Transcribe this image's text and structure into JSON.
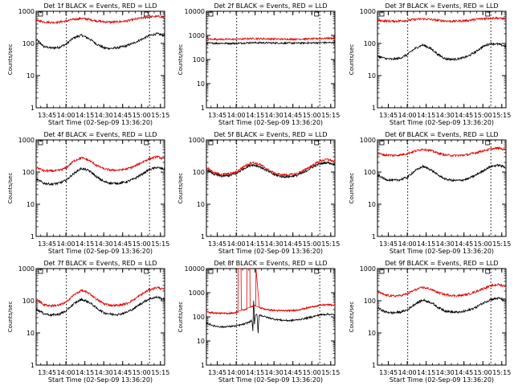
{
  "chart_data": [
    {
      "type": "line",
      "title": "Det 1f BLACK = Events, RED = LLD",
      "xlabel": "Start Time (02-Sep-09 13:36:20)",
      "ylabel": "Counts/sec",
      "xticks": [
        "13:45",
        "14:00",
        "14:15",
        "14:30",
        "14:45",
        "15:00",
        "15:15"
      ],
      "xlim_minutes_after_1336": [
        0,
        102
      ],
      "ylim": [
        1,
        1000
      ],
      "yscale": "log",
      "yticks": [
        "1",
        "10",
        "100",
        "1000"
      ],
      "vlines_minutes_after_1336": [
        24,
        90
      ],
      "series": [
        {
          "name": "Events",
          "color": "#000000",
          "x": [
            0,
            6,
            12,
            18,
            24,
            30,
            36,
            42,
            48,
            54,
            60,
            66,
            72,
            78,
            84,
            90,
            96,
            102
          ],
          "values": [
            130,
            80,
            72,
            75,
            95,
            150,
            180,
            140,
            95,
            72,
            70,
            75,
            85,
            105,
            135,
            175,
            200,
            175
          ]
        },
        {
          "name": "LLD",
          "color": "#e00000",
          "x": [
            0,
            6,
            12,
            18,
            24,
            30,
            36,
            42,
            48,
            54,
            60,
            66,
            72,
            78,
            84,
            90,
            96,
            102
          ],
          "values": [
            520,
            470,
            450,
            460,
            500,
            560,
            600,
            560,
            500,
            470,
            460,
            470,
            500,
            560,
            620,
            670,
            690,
            660
          ]
        }
      ]
    },
    {
      "type": "line",
      "title": "Det 2f BLACK = Events, RED = LLD",
      "xlabel": "Start Time (02-Sep-09 13:36:20)",
      "ylabel": "Counts/sec",
      "xticks": [
        "13:45",
        "14:00",
        "14:15",
        "14:30",
        "14:45",
        "15:00",
        "15:15"
      ],
      "xlim_minutes_after_1336": [
        0,
        102
      ],
      "ylim": [
        1,
        10000
      ],
      "yscale": "log",
      "yticks": [
        "1",
        "10",
        "100",
        "1000",
        "10000"
      ],
      "vlines_minutes_after_1336": [
        24,
        90
      ],
      "series": [
        {
          "name": "Events",
          "color": "#000000",
          "x": [
            0,
            12,
            24,
            36,
            48,
            60,
            72,
            84,
            96,
            102
          ],
          "values": [
            480,
            470,
            470,
            500,
            490,
            480,
            480,
            490,
            500,
            500
          ]
        },
        {
          "name": "LLD",
          "color": "#e00000",
          "x": [
            0,
            12,
            24,
            36,
            48,
            60,
            72,
            84,
            96,
            102
          ],
          "values": [
            700,
            690,
            690,
            740,
            720,
            700,
            700,
            720,
            760,
            760
          ]
        }
      ]
    },
    {
      "type": "line",
      "title": "Det 3f BLACK = Events, RED = LLD",
      "xlabel": "Start Time (02-Sep-09 13:36:20)",
      "ylabel": "Counts/sec",
      "xticks": [
        "13:45",
        "14:00",
        "14:15",
        "14:30",
        "14:45",
        "15:00",
        "15:15"
      ],
      "xlim_minutes_after_1336": [
        0,
        102
      ],
      "ylim": [
        1,
        1000
      ],
      "yscale": "log",
      "yticks": [
        "1",
        "10",
        "100",
        "1000"
      ],
      "vlines_minutes_after_1336": [
        24,
        90
      ],
      "series": [
        {
          "name": "Events",
          "color": "#000000",
          "x": [
            0,
            6,
            12,
            18,
            24,
            30,
            36,
            42,
            48,
            54,
            60,
            66,
            72,
            78,
            84,
            90,
            96,
            102
          ],
          "values": [
            40,
            34,
            32,
            35,
            45,
            70,
            90,
            70,
            45,
            33,
            32,
            34,
            40,
            55,
            80,
            100,
            95,
            80
          ]
        },
        {
          "name": "LLD",
          "color": "#e00000",
          "x": [
            0,
            6,
            12,
            18,
            24,
            30,
            36,
            42,
            48,
            54,
            60,
            66,
            72,
            78,
            84,
            90,
            96,
            102
          ],
          "values": [
            520,
            500,
            490,
            500,
            520,
            560,
            580,
            560,
            520,
            500,
            490,
            500,
            520,
            560,
            590,
            620,
            610,
            580
          ]
        }
      ]
    },
    {
      "type": "line",
      "title": "Det 4f BLACK = Events, RED = LLD",
      "xlabel": "Start Time (02-Sep-09 13:36:20)",
      "ylabel": "Counts/sec",
      "xticks": [
        "13:45",
        "14:00",
        "14:15",
        "14:30",
        "14:45",
        "15:00",
        "15:15"
      ],
      "xlim_minutes_after_1336": [
        0,
        102
      ],
      "ylim": [
        1,
        1000
      ],
      "yscale": "log",
      "yticks": [
        "1",
        "10",
        "100",
        "1000"
      ],
      "vlines_minutes_after_1336": [
        24,
        90
      ],
      "series": [
        {
          "name": "Events",
          "color": "#000000",
          "x": [
            0,
            6,
            12,
            18,
            24,
            30,
            36,
            42,
            48,
            54,
            60,
            66,
            72,
            78,
            84,
            90,
            96,
            102
          ],
          "values": [
            60,
            45,
            42,
            45,
            55,
            90,
            130,
            110,
            70,
            50,
            45,
            45,
            50,
            62,
            85,
            120,
            140,
            120
          ]
        },
        {
          "name": "LLD",
          "color": "#e00000",
          "x": [
            0,
            6,
            12,
            18,
            24,
            30,
            36,
            42,
            48,
            54,
            60,
            66,
            72,
            78,
            84,
            90,
            96,
            102
          ],
          "values": [
            140,
            110,
            108,
            112,
            135,
            220,
            280,
            230,
            160,
            125,
            115,
            115,
            125,
            150,
            200,
            260,
            300,
            250
          ]
        }
      ]
    },
    {
      "type": "line",
      "title": "Det 5f BLACK = Events, RED = LLD",
      "xlabel": "Start Time (02-Sep-09 13:36:20)",
      "ylabel": "Counts/sec",
      "xticks": [
        "13:45",
        "14:00",
        "14:15",
        "14:30",
        "14:45",
        "15:00",
        "15:15"
      ],
      "xlim_minutes_after_1336": [
        0,
        102
      ],
      "ylim": [
        1,
        1000
      ],
      "yscale": "log",
      "yticks": [
        "1",
        "10",
        "100",
        "1000"
      ],
      "vlines_minutes_after_1336": [
        24,
        90
      ],
      "series": [
        {
          "name": "Events",
          "color": "#000000",
          "x": [
            0,
            6,
            12,
            18,
            24,
            30,
            36,
            42,
            48,
            54,
            60,
            66,
            72,
            78,
            84,
            90,
            96,
            102
          ],
          "values": [
            120,
            85,
            75,
            78,
            90,
            130,
            170,
            150,
            110,
            82,
            72,
            72,
            80,
            100,
            140,
            180,
            200,
            170
          ]
        },
        {
          "name": "LLD",
          "color": "#e00000",
          "x": [
            0,
            6,
            12,
            18,
            24,
            30,
            36,
            42,
            48,
            54,
            60,
            66,
            72,
            78,
            84,
            90,
            96,
            102
          ],
          "values": [
            140,
            95,
            85,
            88,
            100,
            150,
            200,
            175,
            125,
            92,
            82,
            82,
            90,
            115,
            160,
            220,
            250,
            210
          ]
        }
      ]
    },
    {
      "type": "line",
      "title": "Det 6f BLACK = Events, RED = LLD",
      "xlabel": "Start Time (02-Sep-09 13:36:20)",
      "ylabel": "Counts/sec",
      "xticks": [
        "13:45",
        "14:00",
        "14:15",
        "14:30",
        "14:45",
        "15:00",
        "15:15"
      ],
      "xlim_minutes_after_1336": [
        0,
        102
      ],
      "ylim": [
        1,
        1000
      ],
      "yscale": "log",
      "yticks": [
        "1",
        "10",
        "100",
        "1000"
      ],
      "vlines_minutes_after_1336": [
        24,
        90
      ],
      "series": [
        {
          "name": "Events",
          "color": "#000000",
          "x": [
            0,
            6,
            12,
            18,
            24,
            30,
            36,
            42,
            48,
            54,
            60,
            66,
            72,
            78,
            84,
            90,
            96,
            102
          ],
          "values": [
            80,
            60,
            55,
            58,
            70,
            110,
            150,
            120,
            80,
            60,
            55,
            55,
            62,
            80,
            110,
            150,
            165,
            140
          ]
        },
        {
          "name": "LLD",
          "color": "#e00000",
          "x": [
            0,
            6,
            12,
            18,
            24,
            30,
            36,
            42,
            48,
            54,
            60,
            66,
            72,
            78,
            84,
            90,
            96,
            102
          ],
          "values": [
            380,
            340,
            330,
            340,
            380,
            450,
            520,
            470,
            390,
            340,
            330,
            330,
            350,
            400,
            460,
            520,
            560,
            490
          ]
        }
      ]
    },
    {
      "type": "line",
      "title": "Det 7f BLACK = Events, RED = LLD",
      "xlabel": "Start Time (02-Sep-09 13:36:20)",
      "ylabel": "Counts/sec",
      "xticks": [
        "13:45",
        "14:00",
        "14:15",
        "14:30",
        "14:45",
        "15:00",
        "15:15"
      ],
      "xlim_minutes_after_1336": [
        0,
        102
      ],
      "ylim": [
        1,
        1000
      ],
      "yscale": "log",
      "yticks": [
        "1",
        "10",
        "100",
        "1000"
      ],
      "vlines_minutes_after_1336": [
        24,
        90
      ],
      "series": [
        {
          "name": "Events",
          "color": "#000000",
          "x": [
            0,
            6,
            12,
            18,
            24,
            30,
            36,
            42,
            48,
            54,
            60,
            66,
            72,
            78,
            84,
            90,
            96,
            102
          ],
          "values": [
            55,
            40,
            36,
            38,
            48,
            80,
            110,
            90,
            58,
            42,
            38,
            38,
            44,
            58,
            85,
            115,
            130,
            110
          ]
        },
        {
          "name": "LLD",
          "color": "#e00000",
          "x": [
            0,
            6,
            12,
            18,
            24,
            30,
            36,
            42,
            48,
            54,
            60,
            66,
            72,
            78,
            84,
            90,
            96,
            102
          ],
          "values": [
            110,
            75,
            70,
            72,
            90,
            150,
            210,
            170,
            110,
            80,
            72,
            72,
            82,
            110,
            160,
            220,
            260,
            220
          ]
        }
      ]
    },
    {
      "type": "line",
      "title": "Det 8f BLACK = Events, RED = LLD",
      "xlabel": "Start Time (02-Sep-09 13:36:20)",
      "ylabel": "Counts/sec",
      "xticks": [
        "13:45",
        "14:00",
        "14:15",
        "14:30",
        "14:45",
        "15:00",
        "15:15"
      ],
      "xlim_minutes_after_1336": [
        0,
        102
      ],
      "ylim": [
        1,
        10000
      ],
      "yscale": "log",
      "yticks": [
        "1",
        "10",
        "100",
        "1000",
        "10000"
      ],
      "vlines_minutes_after_1336": [
        24,
        90
      ],
      "series": [
        {
          "name": "Events",
          "color": "#000000",
          "x": [
            0,
            6,
            12,
            18,
            24,
            26,
            30,
            34,
            36,
            37,
            37.5,
            38,
            39,
            40,
            41,
            42,
            48,
            54,
            60,
            66,
            72,
            78,
            84,
            90,
            96,
            102
          ],
          "values": [
            55,
            42,
            38,
            40,
            42,
            45,
            50,
            60,
            70,
            20,
            500,
            40,
            110,
            130,
            10,
            120,
            95,
            80,
            72,
            70,
            75,
            85,
            100,
            120,
            130,
            120
          ]
        },
        {
          "name": "LLD",
          "color": "#e00000",
          "x": [
            0,
            6,
            12,
            18,
            24,
            25,
            25.2,
            27.5,
            27.7,
            30,
            32,
            32.2,
            34.5,
            34.7,
            36,
            39.2,
            39.4,
            42,
            48,
            54,
            60,
            66,
            72,
            78,
            84,
            90,
            96,
            102
          ],
          "values": [
            160,
            145,
            140,
            140,
            150,
            150,
            10000,
            10000,
            200,
            190,
            200,
            10000,
            10000,
            250,
            260,
            300,
            10000,
            240,
            200,
            185,
            180,
            180,
            190,
            220,
            260,
            300,
            320,
            300
          ]
        }
      ]
    },
    {
      "type": "line",
      "title": "Det 9f BLACK = Events, RED = LLD",
      "xlabel": "Start Time (02-Sep-09 13:36:20)",
      "ylabel": "Counts/sec",
      "xticks": [
        "13:45",
        "14:00",
        "14:15",
        "14:30",
        "14:45",
        "15:00",
        "15:15"
      ],
      "xlim_minutes_after_1336": [
        0,
        102
      ],
      "ylim": [
        1,
        1000
      ],
      "yscale": "log",
      "yticks": [
        "1",
        "10",
        "100",
        "1000"
      ],
      "vlines_minutes_after_1336": [
        24,
        90
      ],
      "series": [
        {
          "name": "Events",
          "color": "#000000",
          "x": [
            0,
            6,
            12,
            18,
            24,
            30,
            36,
            42,
            48,
            54,
            60,
            66,
            72,
            78,
            84,
            90,
            96,
            102
          ],
          "values": [
            60,
            45,
            42,
            44,
            52,
            80,
            105,
            90,
            62,
            48,
            44,
            44,
            50,
            62,
            85,
            110,
            120,
            105
          ]
        },
        {
          "name": "LLD",
          "color": "#e00000",
          "x": [
            0,
            6,
            12,
            18,
            24,
            30,
            36,
            42,
            48,
            54,
            60,
            66,
            72,
            78,
            84,
            90,
            96,
            102
          ],
          "values": [
            190,
            150,
            140,
            145,
            165,
            220,
            260,
            230,
            180,
            155,
            145,
            145,
            160,
            190,
            240,
            290,
            320,
            280
          ]
        }
      ]
    }
  ]
}
